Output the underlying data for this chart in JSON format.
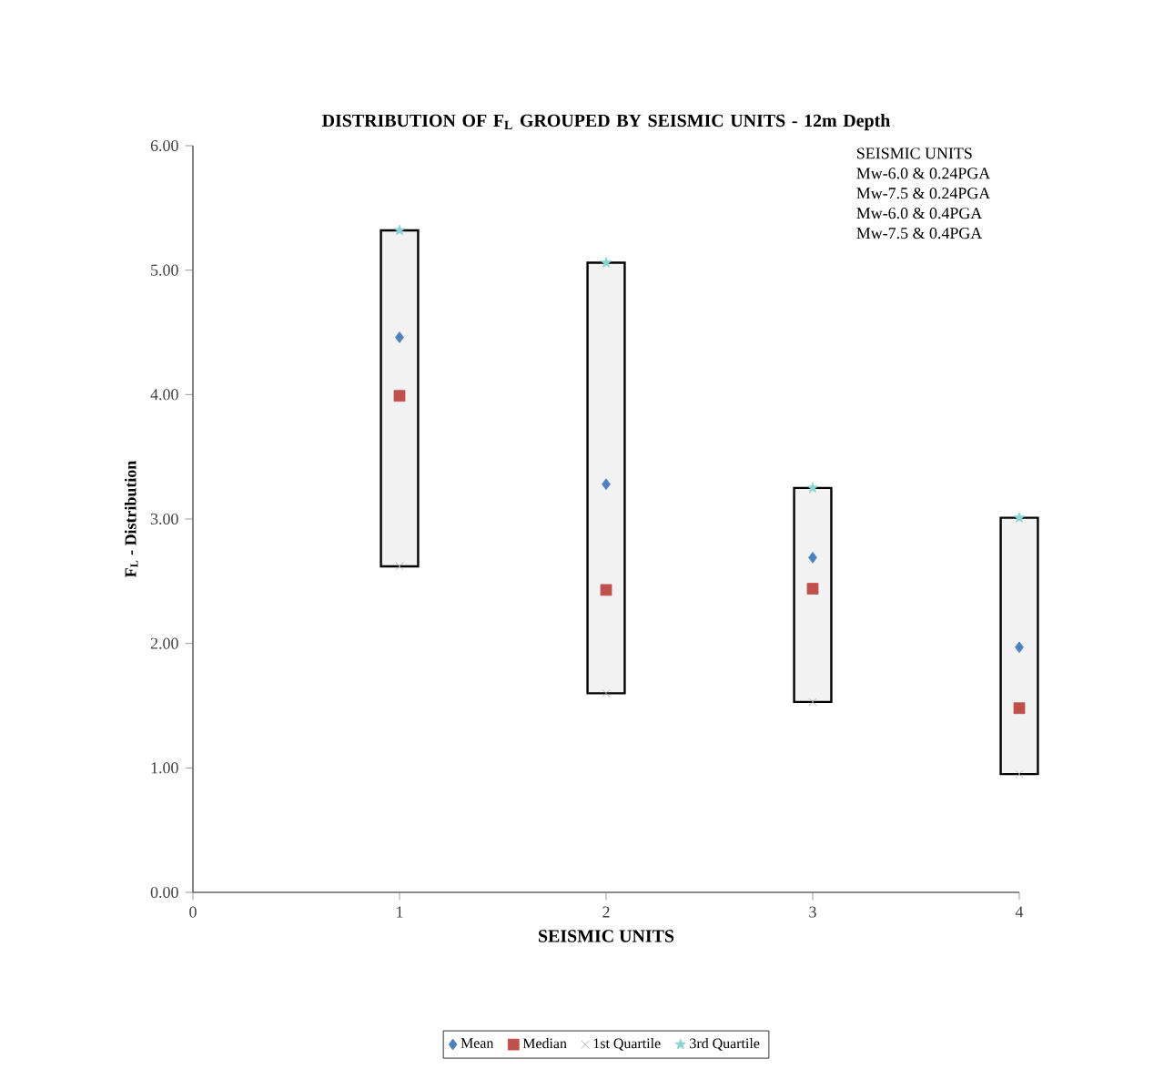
{
  "chart_data": {
    "type": "scatter",
    "title": "DISTRIBUTION OF F$_{L}$ GROUPED BY SEISMIC UNITS - 12m Depth",
    "xlabel": "SEISMIC UNITS",
    "ylabel": "F$_{L}$ - Distribution",
    "x": [
      1,
      2,
      3,
      4
    ],
    "series": [
      {
        "type": "bar",
        "color": "#f2f2f2",
        "base": [
          2.62,
          1.6,
          1.53,
          0.95
        ],
        "values": [
          2.7,
          3.46,
          1.72,
          2.06
        ]
      },
      {
        "name": "Mean",
        "color": "#4f81bd",
        "marker": "diamond",
        "values": [
          4.46,
          3.28,
          2.69,
          1.97
        ]
      },
      {
        "name": "Median",
        "color": "#c0504d",
        "marker": "square",
        "values": [
          3.99,
          2.43,
          2.44,
          1.48
        ]
      },
      {
        "name": "1st Quartile",
        "color": "#a6a6a6",
        "marker": "cross",
        "values": [
          2.62,
          1.6,
          1.53,
          0.95
        ]
      },
      {
        "name": "3rd Quartile",
        "color": "#8ed3d3",
        "marker": "star",
        "values": [
          5.32,
          5.06,
          3.25,
          3.01
        ]
      }
    ],
    "xlim": [
      0,
      4
    ],
    "xticks": [
      0,
      1,
      2,
      3,
      4
    ],
    "ylim": [
      0,
      6
    ],
    "yticks": [
      {
        "value": 0,
        "label": "0.00"
      },
      {
        "value": 1,
        "label": "1.00"
      },
      {
        "value": 2,
        "label": "2.00"
      },
      {
        "value": 3,
        "label": "3.00"
      },
      {
        "value": 4,
        "label": "4.00"
      },
      {
        "value": 5,
        "label": "5.00"
      },
      {
        "value": 6,
        "label": "6.00"
      }
    ],
    "annotations": [
      "SEISMIC UNITS",
      "Mw-6.0 & 0.24PGA",
      "Mw-7.5 & 0.24PGA",
      "Mw-6.0 & 0.4PGA",
      "Mw-7.5 & 0.4PGA"
    ],
    "legend": "bottom"
  }
}
